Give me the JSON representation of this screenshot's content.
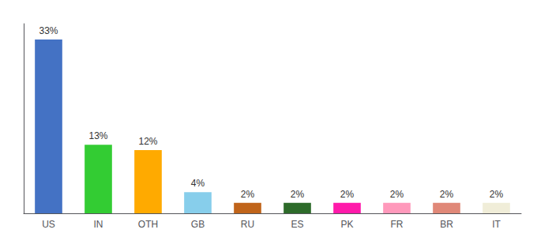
{
  "chart_data": {
    "type": "bar",
    "categories": [
      "US",
      "IN",
      "OTH",
      "GB",
      "RU",
      "ES",
      "PK",
      "FR",
      "BR",
      "IT"
    ],
    "values": [
      33,
      13,
      12,
      4,
      2,
      2,
      2,
      2,
      2,
      2
    ],
    "value_labels": [
      "33%",
      "13%",
      "12%",
      "4%",
      "2%",
      "2%",
      "2%",
      "2%",
      "2%",
      "2%"
    ],
    "colors": [
      "#4472c4",
      "#33cc33",
      "#ffaa00",
      "#87ceeb",
      "#c0641a",
      "#2d6b2a",
      "#ff1aaa",
      "#ff99bb",
      "#e08878",
      "#f0edd8"
    ],
    "ylim": [
      0,
      36
    ],
    "grid": false,
    "data_labels": true,
    "tick_labels": "x"
  }
}
